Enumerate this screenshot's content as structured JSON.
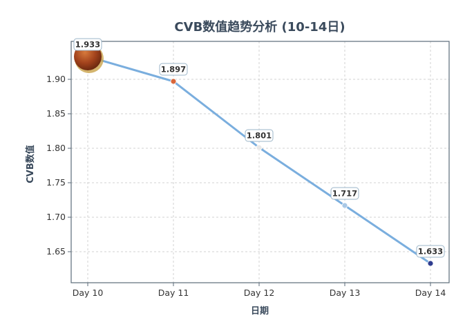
{
  "chart_data": {
    "type": "line",
    "title": "CVB数值趋势分析 (10-14日)",
    "xlabel": "日期",
    "ylabel": "CVB数值",
    "categories": [
      "Day 10",
      "Day 11",
      "Day 12",
      "Day 13",
      "Day 14"
    ],
    "series": [
      {
        "values": [
          1.933,
          1.897,
          1.801,
          1.717,
          1.633
        ]
      }
    ],
    "data_labels": [
      "1.933",
      "1.897",
      "1.801",
      "1.717",
      "1.633"
    ],
    "yticks": [
      1.65,
      1.7,
      1.75,
      1.8,
      1.85,
      1.9
    ],
    "ytick_labels": [
      "1.65",
      "1.70",
      "1.75",
      "1.80",
      "1.85",
      "1.90"
    ],
    "ylim": [
      1.605,
      1.955
    ],
    "grid": true,
    "colors": {
      "line": "#7aaede",
      "axis": "#5a6a78",
      "grid": "#d0d0d0",
      "title": "#3a4a5c",
      "label_box": "#9bb5c8",
      "marker_palette": [
        "#b05a2a",
        "#d9663a",
        "#e8e8e8",
        "#a9c8e6",
        "#2f3d8f"
      ]
    }
  }
}
